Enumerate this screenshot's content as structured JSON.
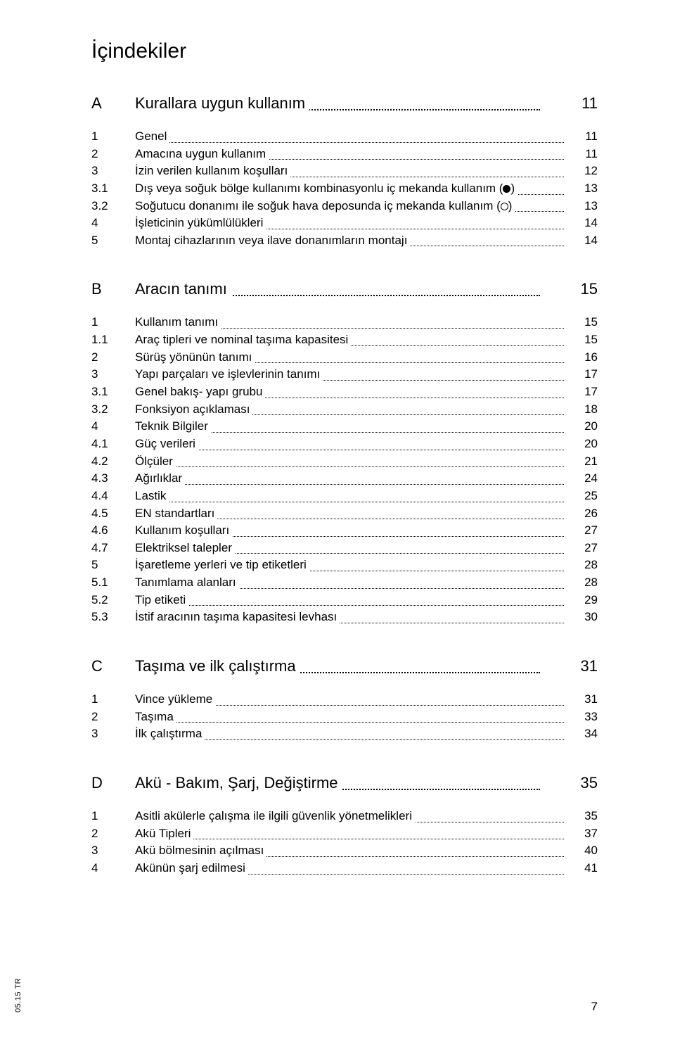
{
  "title": "İçindekiler",
  "side_label": "05.15 TR",
  "page_number": "7",
  "sections": [
    {
      "letter": "A",
      "heading": "Kurallara uygun kullanım",
      "heading_page": "11",
      "entries": [
        {
          "n": "1",
          "t": "Genel",
          "p": "11"
        },
        {
          "n": "2",
          "t": "Amacına uygun kullanım",
          "p": "11"
        },
        {
          "n": "3",
          "t": "İzin verilen kullanım koşulları",
          "p": "12"
        },
        {
          "n": "3.1",
          "t": "Dış veya soğuk bölge kullanımı kombinasyonlu iç mekanda kullanım (",
          "suffix": ")",
          "icon": "filled",
          "p": "13"
        },
        {
          "n": "3.2",
          "t": "Soğutucu donanımı ile soğuk hava deposunda iç mekanda kullanım (",
          "suffix": ")",
          "icon": "open",
          "p": "13"
        },
        {
          "n": "4",
          "t": "İşleticinin yükümlülükleri",
          "p": "14"
        },
        {
          "n": "5",
          "t": "Montaj cihazlarının veya ilave donanımların montajı",
          "p": "14"
        }
      ]
    },
    {
      "letter": "B",
      "heading": "Aracın tanımı",
      "heading_page": "15",
      "entries": [
        {
          "n": "1",
          "t": "Kullanım tanımı",
          "p": "15"
        },
        {
          "n": "1.1",
          "t": "Araç tipleri ve nominal taşıma kapasitesi",
          "p": "15"
        },
        {
          "n": "2",
          "t": "Sürüş yönünün tanımı",
          "p": "16"
        },
        {
          "n": "3",
          "t": "Yapı parçaları ve işlevlerinin tanımı",
          "p": "17"
        },
        {
          "n": "3.1",
          "t": "Genel bakış- yapı grubu",
          "p": "17"
        },
        {
          "n": "3.2",
          "t": "Fonksiyon açıklaması",
          "p": "18"
        },
        {
          "n": "4",
          "t": "Teknik Bilgiler",
          "p": "20"
        },
        {
          "n": "4.1",
          "t": "Güç verileri",
          "p": "20"
        },
        {
          "n": "4.2",
          "t": "Ölçüler",
          "p": "21"
        },
        {
          "n": "4.3",
          "t": "Ağırlıklar",
          "p": "24"
        },
        {
          "n": "4.4",
          "t": "Lastik",
          "p": "25"
        },
        {
          "n": "4.5",
          "t": "EN standartları",
          "p": "26"
        },
        {
          "n": "4.6",
          "t": "Kullanım koşulları",
          "p": "27"
        },
        {
          "n": "4.7",
          "t": "Elektriksel talepler",
          "p": "27"
        },
        {
          "n": "5",
          "t": "İşaretleme yerleri ve tip etiketleri",
          "p": "28"
        },
        {
          "n": "5.1",
          "t": "Tanımlama alanları",
          "p": "28"
        },
        {
          "n": "5.2",
          "t": "Tip etiketi",
          "p": "29"
        },
        {
          "n": "5.3",
          "t": "İstif aracının taşıma kapasitesi levhası",
          "p": "30"
        }
      ]
    },
    {
      "letter": "C",
      "heading": "Taşıma ve ilk çalıştırma",
      "heading_page": "31",
      "entries": [
        {
          "n": "1",
          "t": "Vince yükleme",
          "p": "31"
        },
        {
          "n": "2",
          "t": "Taşıma",
          "p": "33"
        },
        {
          "n": "3",
          "t": "İlk çalıştırma",
          "p": "34"
        }
      ]
    },
    {
      "letter": "D",
      "heading": "Akü - Bakım, Şarj, Değiştirme",
      "heading_page": "35",
      "entries": [
        {
          "n": "1",
          "t": "Asitli akülerle çalışma ile ilgili güvenlik yönetmelikleri",
          "p": "35"
        },
        {
          "n": "2",
          "t": "Akü Tipleri",
          "p": "37"
        },
        {
          "n": "3",
          "t": "Akü bölmesinin açılması",
          "p": "40"
        },
        {
          "n": "4",
          "t": "Akünün şarj edilmesi",
          "p": "41"
        }
      ]
    }
  ]
}
